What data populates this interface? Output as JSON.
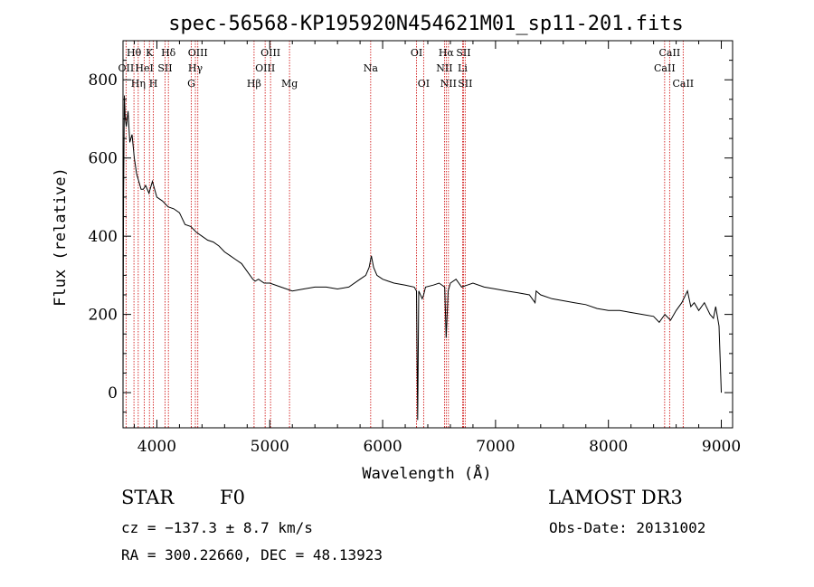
{
  "chart_data": {
    "type": "line",
    "title": "spec-56568-KP195920N454621M01_sp11-201.fits",
    "xlabel": "Wavelength (Å)",
    "ylabel": "Flux (relative)",
    "xlim": [
      3700,
      9100
    ],
    "ylim": [
      -90,
      900
    ],
    "xticks": [
      4000,
      5000,
      6000,
      7000,
      8000,
      9000
    ],
    "xtick_labels": [
      "4000",
      "5000",
      "6000",
      "7000",
      "8000",
      "9000"
    ],
    "yticks": [
      0,
      200,
      400,
      600,
      800
    ],
    "ytick_labels": [
      "0",
      "200",
      "400",
      "600",
      "800"
    ],
    "series": [
      {
        "name": "flux",
        "x": [
          3700,
          3705,
          3712,
          3720,
          3730,
          3745,
          3760,
          3780,
          3800,
          3820,
          3840,
          3860,
          3880,
          3900,
          3930,
          3960,
          4000,
          4050,
          4100,
          4150,
          4200,
          4250,
          4300,
          4350,
          4400,
          4450,
          4500,
          4550,
          4600,
          4650,
          4700,
          4750,
          4800,
          4850,
          4870,
          4900,
          4950,
          5000,
          5100,
          5200,
          5300,
          5400,
          5500,
          5600,
          5700,
          5800,
          5850,
          5880,
          5900,
          5920,
          5950,
          6000,
          6050,
          6100,
          6200,
          6280,
          6300,
          6310,
          6320,
          6350,
          6363,
          6380,
          6450,
          6500,
          6550,
          6563,
          6580,
          6600,
          6650,
          6700,
          6750,
          6800,
          6900,
          7000,
          7100,
          7200,
          7300,
          7350,
          7360,
          7400,
          7500,
          7600,
          7700,
          7800,
          7900,
          8000,
          8100,
          8200,
          8300,
          8400,
          8450,
          8500,
          8550,
          8600,
          8650,
          8700,
          8730,
          8760,
          8800,
          8850,
          8900,
          8930,
          8950,
          8980,
          9000
        ],
        "y": [
          0,
          500,
          760,
          700,
          680,
          720,
          640,
          660,
          600,
          560,
          540,
          520,
          520,
          530,
          510,
          540,
          500,
          490,
          475,
          470,
          460,
          430,
          425,
          410,
          400,
          390,
          385,
          375,
          360,
          350,
          340,
          330,
          310,
          290,
          285,
          290,
          280,
          280,
          270,
          260,
          265,
          270,
          270,
          265,
          270,
          290,
          300,
          320,
          350,
          320,
          300,
          290,
          285,
          280,
          275,
          270,
          260,
          -70,
          260,
          240,
          250,
          270,
          275,
          280,
          270,
          140,
          260,
          280,
          290,
          270,
          275,
          280,
          270,
          265,
          260,
          255,
          250,
          230,
          260,
          250,
          240,
          235,
          230,
          225,
          215,
          210,
          210,
          205,
          200,
          195,
          180,
          200,
          185,
          210,
          230,
          260,
          220,
          230,
          210,
          230,
          200,
          190,
          220,
          170,
          0
        ]
      }
    ],
    "lines": [
      {
        "name": "OII",
        "x": 3727,
        "row": 2
      },
      {
        "name": "Hθ",
        "x": 3797,
        "row": 1
      },
      {
        "name": "Hη",
        "x": 3835,
        "row": 3
      },
      {
        "name": "HeI",
        "x": 3889,
        "row": 2
      },
      {
        "name": "K",
        "x": 3934,
        "row": 1
      },
      {
        "name": "H",
        "x": 3969,
        "row": 3
      },
      {
        "name": "SII",
        "x": 4072,
        "row": 2
      },
      {
        "name": "Hδ",
        "x": 4102,
        "row": 1
      },
      {
        "name": "G",
        "x": 4305,
        "row": 3
      },
      {
        "name": "Hγ",
        "x": 4341,
        "row": 2
      },
      {
        "name": "OIII",
        "x": 4363,
        "row": 1
      },
      {
        "name": "Hβ",
        "x": 4861,
        "row": 3
      },
      {
        "name": "OIII",
        "x": 4959,
        "row": 2
      },
      {
        "name": "OIII",
        "x": 5007,
        "row": 1
      },
      {
        "name": "Mg",
        "x": 5175,
        "row": 3
      },
      {
        "name": "Na",
        "x": 5894,
        "row": 2
      },
      {
        "name": "OI",
        "x": 6300,
        "row": 1
      },
      {
        "name": "OI",
        "x": 6363,
        "row": 3
      },
      {
        "name": "NII",
        "x": 6548,
        "row": 2
      },
      {
        "name": "Hα",
        "x": 6563,
        "row": 1
      },
      {
        "name": "NII",
        "x": 6583,
        "row": 3
      },
      {
        "name": "Li",
        "x": 6708,
        "row": 2
      },
      {
        "name": "SII",
        "x": 6716,
        "row": 1
      },
      {
        "name": "SII",
        "x": 6731,
        "row": 3
      },
      {
        "name": "CaII",
        "x": 8498,
        "row": 2
      },
      {
        "name": "CaII",
        "x": 8542,
        "row": 1
      },
      {
        "name": "CaII",
        "x": 8662,
        "row": 3
      }
    ],
    "line_color": "#cc0000",
    "spectrum_color": "#000000",
    "grid": false
  },
  "info": {
    "class_label": "STAR",
    "subclass": "F0",
    "survey": "LAMOST DR3",
    "velocity": "cz = −137.3 ± 8.7 km/s",
    "obs_date": "Obs-Date: 20131002",
    "coords": "RA = 300.22660, DEC =  48.13923"
  }
}
